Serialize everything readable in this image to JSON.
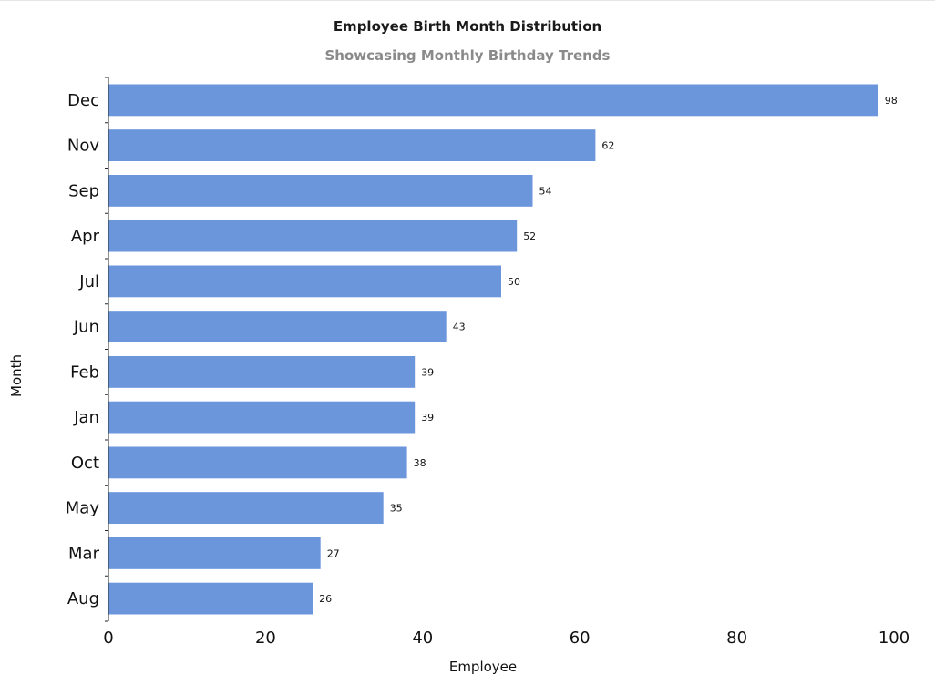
{
  "chart_data": {
    "type": "bar",
    "orientation": "horizontal",
    "title": "Employee Birth Month Distribution",
    "subtitle": "Showcasing Monthly Birthday Trends",
    "xlabel": "Employee",
    "ylabel": "Month",
    "categories": [
      "Dec",
      "Nov",
      "Sep",
      "Apr",
      "Jul",
      "Jun",
      "Feb",
      "Jan",
      "Oct",
      "May",
      "Mar",
      "Aug"
    ],
    "values": [
      98,
      62,
      54,
      52,
      50,
      43,
      39,
      39,
      38,
      35,
      27,
      26
    ],
    "xlim": [
      0,
      100
    ],
    "xticks": [
      0,
      20,
      40,
      60,
      80,
      100
    ],
    "bar_color": "#6b96dc",
    "grid": false,
    "data_labels": true
  }
}
